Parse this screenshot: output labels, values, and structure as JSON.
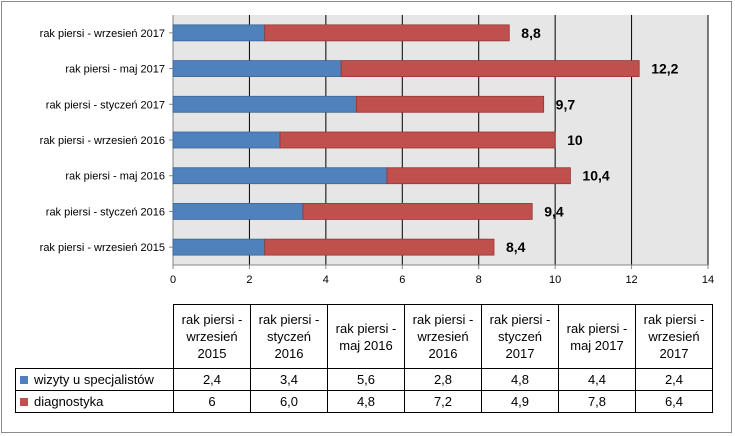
{
  "colors": {
    "visits": "#4f81bd",
    "diagnostics": "#c0504d",
    "plot_bg": "#e6e6e6",
    "grid": "#000000"
  },
  "chart_data": {
    "type": "bar",
    "orientation": "horizontal",
    "stacked": true,
    "categories": [
      "rak piersi - wrzesień 2015",
      "rak piersi - styczeń 2016",
      "rak piersi - maj 2016",
      "rak piersi - wrzesień 2016",
      "rak piersi - styczeń 2017",
      "rak piersi - maj 2017",
      "rak piersi - wrzesień 2017"
    ],
    "series": [
      {
        "name": "wizyty u specjalistów",
        "values": [
          2.4,
          3.4,
          5.6,
          2.8,
          4.8,
          4.4,
          2.4
        ],
        "labels": [
          "2,4",
          "3,4",
          "5,6",
          "2,8",
          "4,8",
          "4,4",
          "2,4"
        ]
      },
      {
        "name": "diagnostyka",
        "values": [
          6,
          6.0,
          4.8,
          7.2,
          4.9,
          7.8,
          6.4
        ],
        "labels": [
          "6",
          "6,0",
          "4,8",
          "7,2",
          "4,9",
          "7,8",
          "6,4"
        ]
      }
    ],
    "totals": [
      8.4,
      9.4,
      10.4,
      10,
      9.7,
      12.2,
      8.8
    ],
    "total_labels": [
      "8,4",
      "9,4",
      "10,4",
      "10",
      "9,7",
      "12,2",
      "8,8"
    ],
    "xlim": [
      0,
      14
    ],
    "xticks": [
      0,
      2,
      4,
      6,
      8,
      10,
      12,
      14
    ],
    "xtick_labels": [
      "0",
      "2",
      "4",
      "6",
      "8",
      "10",
      "12",
      "14"
    ],
    "grid": true,
    "legend": "data-table-below",
    "table_headers": [
      [
        "rak piersi -",
        "wrzesień",
        "2015"
      ],
      [
        "rak piersi -",
        "styczeń",
        "2016"
      ],
      [
        "rak piersi -",
        "maj 2016"
      ],
      [
        "rak piersi -",
        "wrzesień",
        "2016"
      ],
      [
        "rak piersi -",
        "styczeń",
        "2017"
      ],
      [
        "rak piersi -",
        "maj 2017"
      ],
      [
        "rak piersi -",
        "wrzesień",
        "2017"
      ]
    ]
  }
}
